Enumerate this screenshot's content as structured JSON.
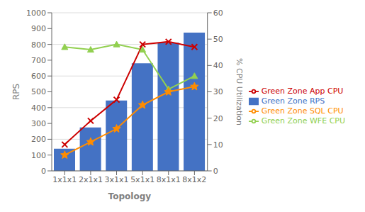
{
  "chart_data": {
    "type": "bar",
    "xlabel": "Topology",
    "ylabel": "RPS",
    "y2label": "% CPU Utilization",
    "categories": [
      "1x1x1",
      "2x1x1",
      "3x1x1",
      "5x1x1",
      "8x1x1",
      "8x1x2"
    ],
    "series": [
      {
        "name": "Green Zone RPS",
        "type": "bar",
        "color": "#4472C4",
        "values": [
          140,
          275,
          445,
          680,
          810,
          875
        ]
      },
      {
        "name": "Green Zone WFE CPU",
        "type": "line",
        "axis": "y2",
        "color": "#92D050",
        "marker": "triangle",
        "values": [
          47,
          46,
          48,
          46,
          31,
          36
        ]
      },
      {
        "name": "Green Zone App CPU",
        "type": "line",
        "axis": "y2",
        "color": "#CC0000",
        "marker": "x",
        "values": [
          10,
          19,
          27,
          48,
          49,
          47
        ]
      },
      {
        "name": "Green Zone SQL CPU",
        "type": "line",
        "axis": "y2",
        "color": "#FF8C00",
        "marker": "star",
        "values": [
          6,
          11,
          16,
          25,
          30,
          32
        ]
      }
    ],
    "ylim": [
      0,
      1000
    ],
    "yticks": [
      0,
      100,
      200,
      300,
      400,
      500,
      600,
      700,
      800,
      900,
      1000
    ],
    "y2lim": [
      0,
      60
    ],
    "y2ticks": [
      0,
      10,
      20,
      30,
      40,
      50,
      60
    ],
    "grid": true,
    "legend": "right"
  }
}
